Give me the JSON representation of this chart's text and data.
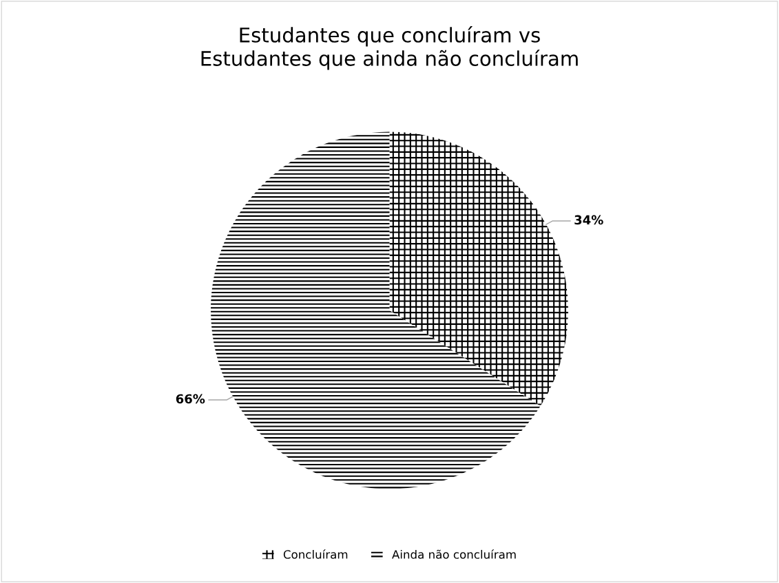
{
  "chart_data": {
    "type": "pie",
    "title": "Estudantes que concluíram vs\nEstudantes que ainda não concluíram",
    "categories": [
      "Concluíram",
      "Ainda não concluíram"
    ],
    "values": [
      34,
      66
    ],
    "colors": [
      "#000000",
      "#000000"
    ],
    "value_labels": [
      "34%",
      "66%"
    ],
    "legend": "bottom"
  }
}
